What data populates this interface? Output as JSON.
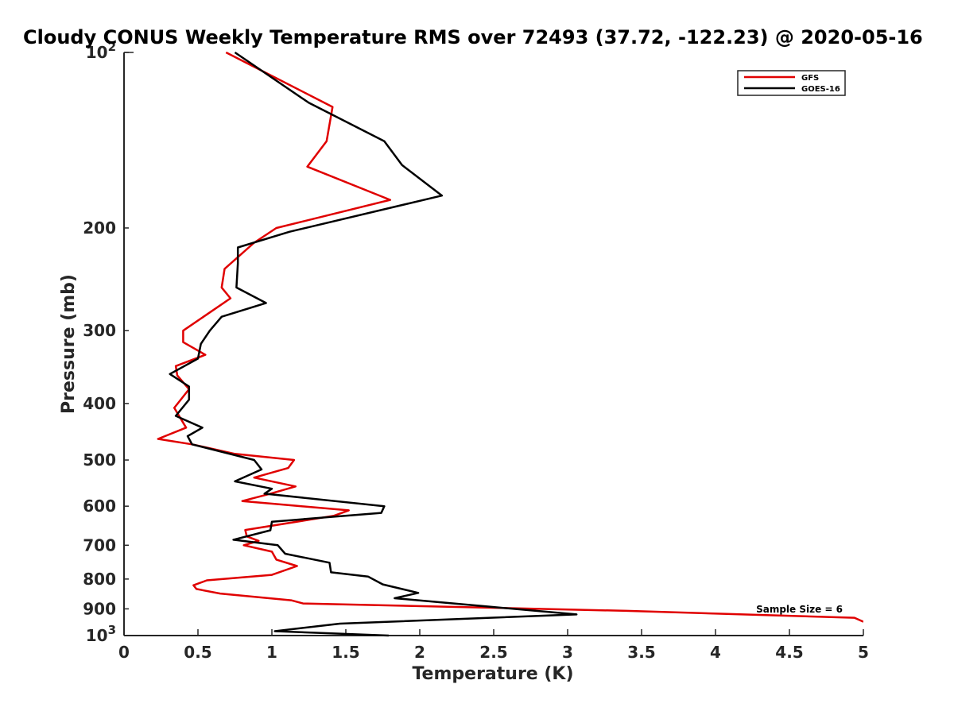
{
  "chart_data": {
    "type": "line",
    "title": "Cloudy CONUS Weekly Temperature RMS over 72493 (37.72, -122.23) @ 2020-05-16",
    "xlabel": "Temperature (K)",
    "ylabel": "Pressure (mb)",
    "xlim": [
      0,
      5
    ],
    "ylim": [
      100,
      1000
    ],
    "yscale": "log",
    "y_reversed": true,
    "grid": false,
    "legend_position": "top-right",
    "x_ticks": [
      "0",
      "0.5",
      "1",
      "1.5",
      "2",
      "2.5",
      "3",
      "3.5",
      "4",
      "4.5",
      "5"
    ],
    "y_ticks": [
      {
        "value": 100,
        "base": "10",
        "exp": "2"
      },
      {
        "value": 200,
        "label": "200"
      },
      {
        "value": 300,
        "label": "300"
      },
      {
        "value": 400,
        "label": "400"
      },
      {
        "value": 500,
        "label": "500"
      },
      {
        "value": 600,
        "label": "600"
      },
      {
        "value": 700,
        "label": "700"
      },
      {
        "value": 800,
        "label": "800"
      },
      {
        "value": 900,
        "label": "900"
      },
      {
        "value": 1000,
        "base": "10",
        "exp": "3"
      }
    ],
    "annotation": "Sample Size = 6",
    "series": [
      {
        "name": "GFS",
        "color": "#e00000",
        "x": [
          0.69,
          1.41,
          1.37,
          1.24,
          1.8,
          1.03,
          0.88,
          0.68,
          0.66,
          0.72,
          0.4,
          0.4,
          0.55,
          0.35,
          0.36,
          0.44,
          0.34,
          0.42,
          0.23,
          0.46,
          0.75,
          1.15,
          1.11,
          0.88,
          1.16,
          0.98,
          0.8,
          1.52,
          1.42,
          0.82,
          0.83,
          0.91,
          0.81,
          1.0,
          1.03,
          1.17,
          1.0,
          0.56,
          0.47,
          0.49,
          0.65,
          1.13,
          1.21,
          3.4,
          4.94,
          5.0
        ],
        "y": [
          100,
          124,
          142,
          157,
          179,
          200,
          212,
          235,
          253,
          264,
          300,
          314,
          330,
          345,
          358,
          378,
          407,
          440,
          460,
          470,
          488,
          500,
          516,
          536,
          555,
          572,
          588,
          610,
          623,
          659,
          676,
          688,
          700,
          718,
          741,
          760,
          787,
          804,
          820,
          832,
          847,
          870,
          881,
          907,
          932,
          947
        ]
      },
      {
        "name": "GOES-16",
        "color": "#000000",
        "x": [
          0.75,
          1.25,
          1.76,
          1.88,
          2.15,
          1.12,
          0.77,
          0.77,
          0.76,
          0.96,
          0.66,
          0.58,
          0.52,
          0.5,
          0.31,
          0.44,
          0.44,
          0.35,
          0.53,
          0.43,
          0.46,
          0.88,
          0.93,
          0.75,
          1.0,
          0.95,
          1.76,
          1.74,
          1.0,
          0.99,
          0.74,
          1.04,
          1.09,
          1.39,
          1.4,
          1.65,
          1.75,
          1.99,
          1.83,
          3.06,
          1.46,
          1.02,
          1.79
        ],
        "y": [
          100,
          122,
          142,
          156,
          176,
          203,
          216,
          230,
          253,
          269,
          284,
          300,
          316,
          335,
          356,
          374,
          394,
          420,
          440,
          455,
          470,
          500,
          519,
          544,
          560,
          571,
          600,
          616,
          638,
          660,
          685,
          700,
          724,
          750,
          779,
          792,
          817,
          845,
          863,
          920,
          954,
          983,
          1000
        ]
      }
    ]
  }
}
